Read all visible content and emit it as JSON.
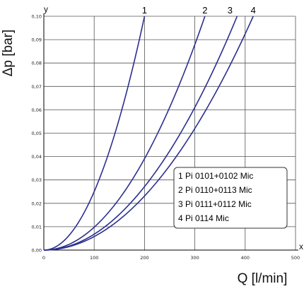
{
  "chart_data": {
    "type": "line",
    "xlabel": "Q [l/min]",
    "ylabel": "Δp [bar]",
    "x_axis_letter": "x",
    "y_axis_letter": "y",
    "xlim": [
      0,
      500
    ],
    "ylim": [
      0,
      0.1
    ],
    "x_ticks": [
      {
        "value": 0,
        "label": "0"
      },
      {
        "value": 100,
        "label": "100"
      },
      {
        "value": 200,
        "label": "200"
      },
      {
        "value": 300,
        "label": "300"
      },
      {
        "value": 400,
        "label": "400"
      },
      {
        "value": 500,
        "label": "500"
      }
    ],
    "y_ticks": [
      {
        "value": 0,
        "label": "0,00"
      },
      {
        "value": 0.01,
        "label": "0,01"
      },
      {
        "value": 0.02,
        "label": "0,02"
      },
      {
        "value": 0.03,
        "label": "0,03"
      },
      {
        "value": 0.04,
        "label": "0,04"
      },
      {
        "value": 0.05,
        "label": "0,05"
      },
      {
        "value": 0.06,
        "label": "0,06"
      },
      {
        "value": 0.07,
        "label": "0,07"
      },
      {
        "value": 0.08,
        "label": "0,08"
      },
      {
        "value": 0.09,
        "label": "0,09"
      },
      {
        "value": 0.1,
        "label": "0,10"
      }
    ],
    "grid": true,
    "line_color": "#2b2f8f",
    "legend_placement": "lower-right",
    "series": [
      {
        "label": "1",
        "legend": "1 Pi 0101+0102 Mic",
        "x": [
          0,
          25,
          50,
          75,
          100,
          125,
          150,
          175,
          200
        ],
        "y": [
          0,
          0.0016,
          0.0063,
          0.0141,
          0.025,
          0.0391,
          0.0563,
          0.0766,
          0.1
        ]
      },
      {
        "label": "2",
        "legend": "2 Pi 0110+0113 Mic",
        "x": [
          0,
          40,
          80,
          120,
          160,
          200,
          240,
          280,
          320
        ],
        "y": [
          0,
          0.0016,
          0.0063,
          0.0141,
          0.025,
          0.0391,
          0.0563,
          0.0766,
          0.1
        ]
      },
      {
        "label": "3",
        "legend": "3 Pi 0111+0112 Mic",
        "x": [
          0,
          48,
          96,
          144,
          192,
          240,
          288,
          336,
          384
        ],
        "y": [
          0,
          0.0016,
          0.0063,
          0.0141,
          0.025,
          0.0391,
          0.0563,
          0.0766,
          0.1
        ]
      },
      {
        "label": "4",
        "legend": "4 Pi 0114 Mic",
        "x": [
          0,
          52,
          104,
          156,
          208,
          260,
          312,
          364,
          416
        ],
        "y": [
          0,
          0.0016,
          0.0063,
          0.0141,
          0.025,
          0.0391,
          0.0563,
          0.0766,
          0.1
        ]
      }
    ]
  }
}
